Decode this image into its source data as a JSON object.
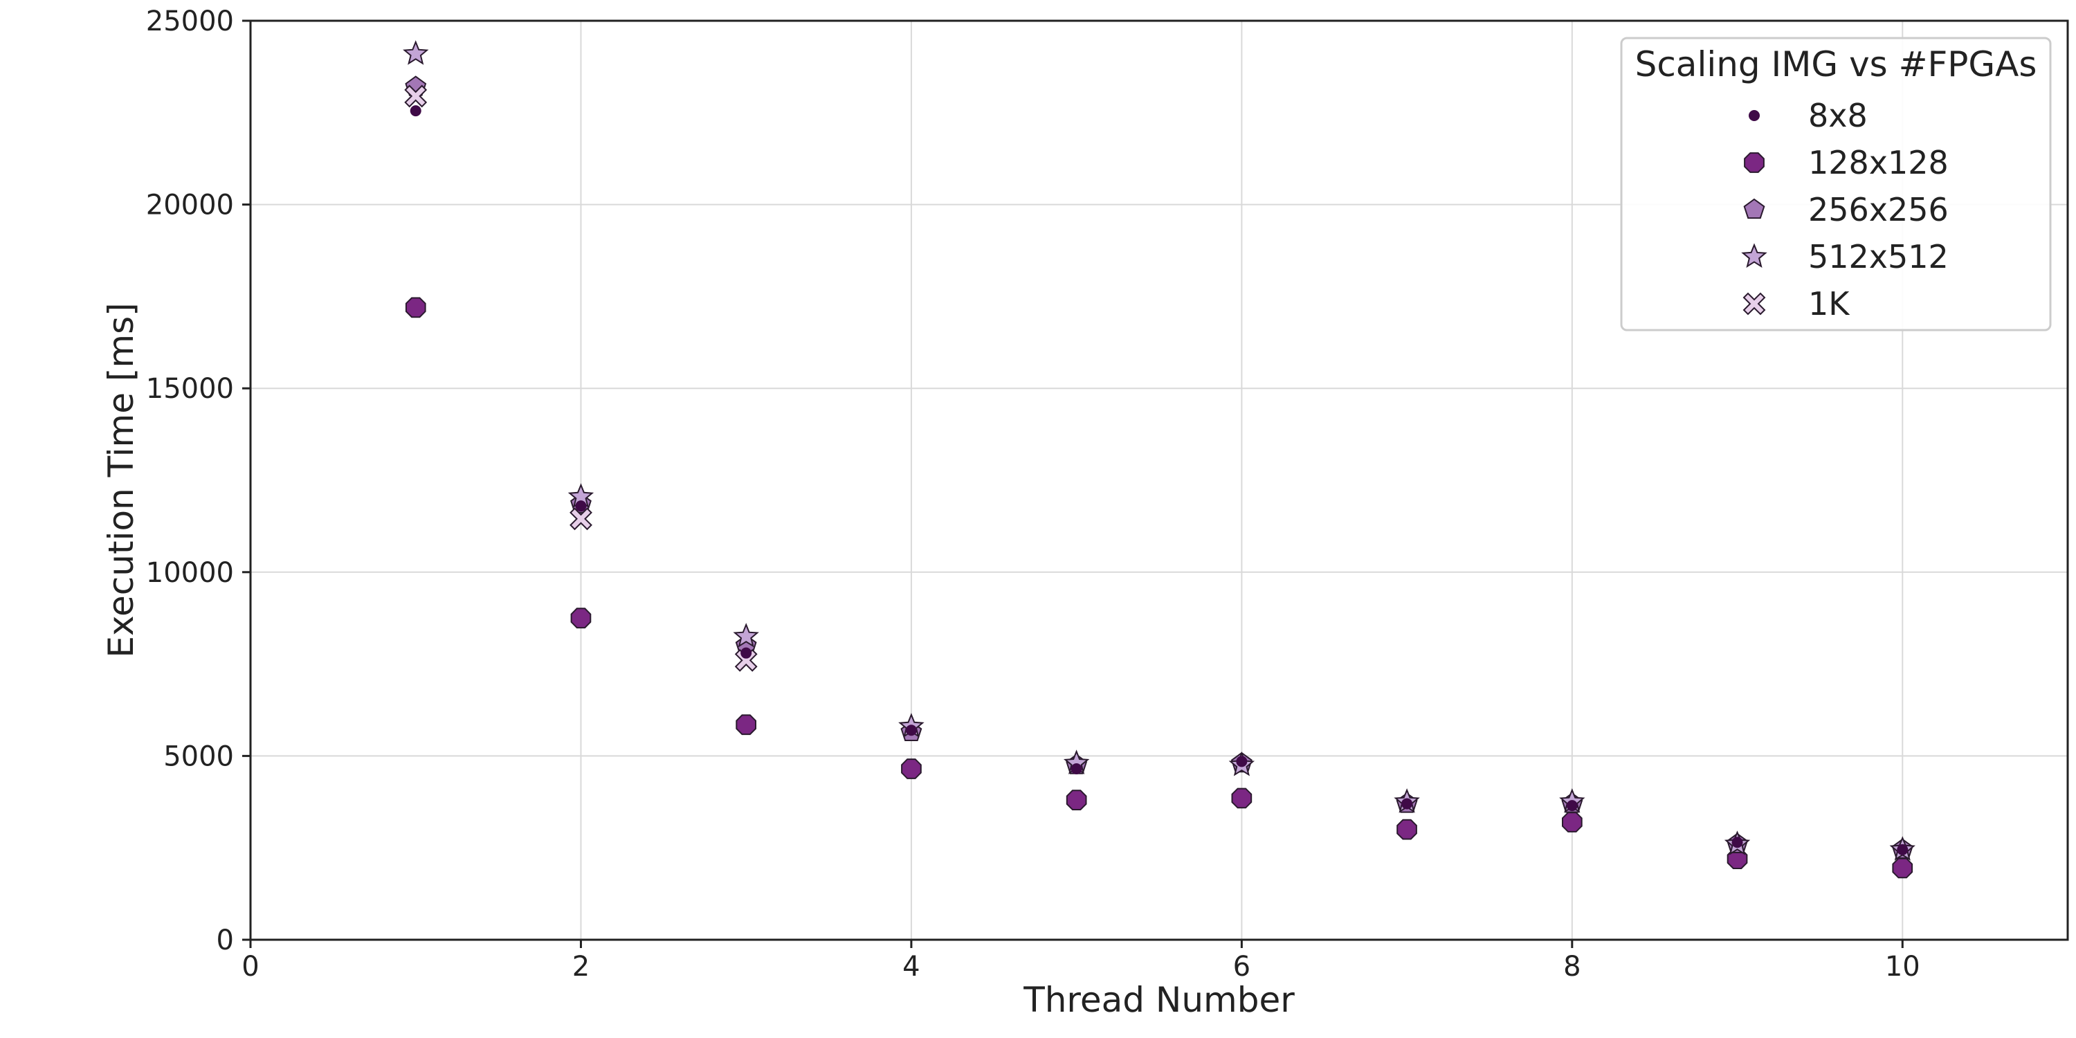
{
  "chart_data": {
    "type": "scatter",
    "title": "",
    "xlabel": "Thread Number",
    "ylabel": "Execution Time [ms]",
    "xlim": [
      0,
      11
    ],
    "ylim": [
      0,
      25000
    ],
    "xticks": [
      0,
      2,
      4,
      6,
      8,
      10
    ],
    "yticks": [
      0,
      5000,
      10000,
      15000,
      20000,
      25000
    ],
    "grid": true,
    "legend": {
      "title": "Scaling IMG vs #FPGAs",
      "position": "top-right"
    },
    "series": [
      {
        "name": "8x8",
        "marker": "circle-small",
        "color": "#3f0a47",
        "x": [
          1,
          2,
          3,
          4,
          5,
          6,
          7,
          8,
          9,
          10
        ],
        "y": [
          22550,
          11800,
          7800,
          5700,
          4650,
          4850,
          3700,
          3650,
          2650,
          2450
        ]
      },
      {
        "name": "128x128",
        "marker": "octagon",
        "color": "#7b2783",
        "x": [
          1,
          2,
          3,
          4,
          5,
          6,
          7,
          8,
          9,
          10
        ],
        "y": [
          17200,
          8750,
          5850,
          4650,
          3800,
          3850,
          3000,
          3200,
          2200,
          1950
        ]
      },
      {
        "name": "256x256",
        "marker": "pentagon",
        "color": "#a377b6",
        "x": [
          1,
          2,
          3,
          4,
          5,
          6,
          7,
          8,
          9,
          10
        ],
        "y": [
          23200,
          11850,
          8000,
          5650,
          4750,
          4800,
          3700,
          3700,
          2600,
          2450
        ]
      },
      {
        "name": "512x512",
        "marker": "star",
        "color": "#c3a5d6",
        "x": [
          1,
          2,
          3,
          4,
          5,
          6,
          7,
          8,
          9,
          10
        ],
        "y": [
          24100,
          12050,
          8250,
          5800,
          4800,
          4750,
          3750,
          3750,
          2600,
          2450
        ]
      },
      {
        "name": "1K",
        "marker": "x-filled",
        "color": "#e7cfe9",
        "x": [
          1,
          2,
          3
        ],
        "y": [
          22950,
          11450,
          7600
        ]
      }
    ]
  }
}
